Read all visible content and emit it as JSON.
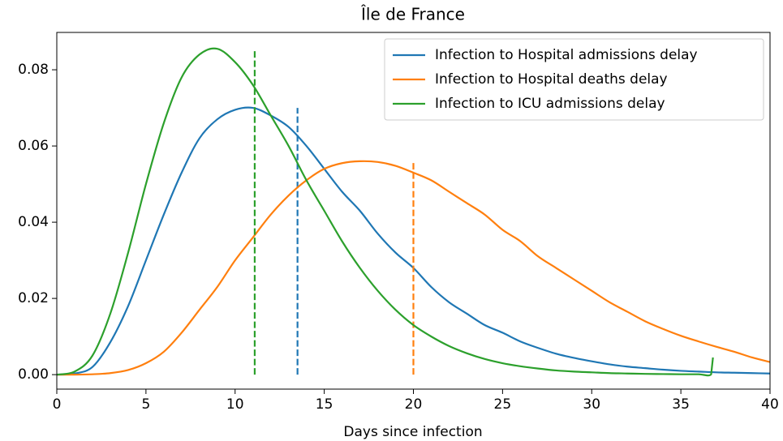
{
  "chart_data": {
    "type": "line",
    "title": "Île de France",
    "xlabel": "Days since infection",
    "x": [
      0,
      1,
      2,
      3,
      4,
      5,
      6,
      7,
      8,
      9,
      10,
      11,
      12,
      13,
      14,
      15,
      16,
      17,
      18,
      19,
      20,
      21,
      22,
      23,
      24,
      25,
      26,
      27,
      28,
      29,
      30,
      31,
      32,
      33,
      34,
      35,
      36,
      37,
      38,
      39,
      40
    ],
    "series": [
      {
        "name": "Infection to Hospital admissions delay",
        "color": "#1f77b4",
        "values": [
          0,
          0.0003,
          0.002,
          0.0085,
          0.018,
          0.03,
          0.042,
          0.053,
          0.062,
          0.067,
          0.0695,
          0.07,
          0.068,
          0.065,
          0.06,
          0.054,
          0.048,
          0.043,
          0.037,
          0.032,
          0.028,
          0.023,
          0.019,
          0.016,
          0.013,
          0.011,
          0.0087,
          0.007,
          0.0055,
          0.0044,
          0.0035,
          0.0027,
          0.0021,
          0.0017,
          0.0013,
          0.001,
          0.0008,
          0.0006,
          0.0005,
          0.0004,
          0.0003
        ],
        "vline": {
          "x": 13.5,
          "ymin": 0,
          "ymax": 0.07
        }
      },
      {
        "name": "Infection to Hospital deaths delay",
        "color": "#ff7f0e",
        "values": [
          0,
          0,
          0.0001,
          0.0004,
          0.0012,
          0.003,
          0.006,
          0.011,
          0.017,
          0.023,
          0.03,
          0.036,
          0.042,
          0.047,
          0.051,
          0.054,
          0.0555,
          0.056,
          0.0558,
          0.0548,
          0.053,
          0.051,
          0.048,
          0.045,
          0.042,
          0.038,
          0.035,
          0.031,
          0.028,
          0.025,
          0.022,
          0.019,
          0.0165,
          0.014,
          0.012,
          0.0102,
          0.0087,
          0.0073,
          0.006,
          0.0045,
          0.0033
        ],
        "vline": {
          "x": 20,
          "ymin": 0,
          "ymax": 0.056
        }
      },
      {
        "name": "Infection to ICU admissions delay",
        "color": "#2ca02c",
        "x": [
          0,
          1,
          2,
          3,
          4,
          5,
          6,
          7,
          8,
          9,
          10,
          11,
          12,
          13,
          14,
          15,
          16,
          17,
          18,
          19,
          20,
          21,
          22,
          23,
          24,
          25,
          26,
          27,
          28,
          29,
          30,
          31,
          32,
          33,
          34,
          35,
          36,
          36.7,
          36.8
        ],
        "values": [
          0,
          0.0008,
          0.005,
          0.016,
          0.032,
          0.05,
          0.066,
          0.078,
          0.084,
          0.0855,
          0.082,
          0.076,
          0.068,
          0.06,
          0.051,
          0.043,
          0.035,
          0.028,
          0.022,
          0.017,
          0.013,
          0.01,
          0.0075,
          0.0056,
          0.0041,
          0.003,
          0.0022,
          0.0016,
          0.0011,
          0.0008,
          0.0006,
          0.0004,
          0.0003,
          0.0002,
          0.00015,
          0.0001,
          0.0001,
          0.0001,
          0.0045
        ],
        "vline": {
          "x": 11.1,
          "ymin": 0,
          "ymax": 0.0855
        }
      }
    ],
    "xlim": [
      0,
      40
    ],
    "xticks": [
      0,
      5,
      10,
      15,
      20,
      25,
      30,
      35,
      40
    ],
    "ylim": [
      -0.0038,
      0.0898
    ],
    "yticks": [
      {
        "value": 0,
        "label": "0.00"
      },
      {
        "value": 0.02,
        "label": "0.02"
      },
      {
        "value": 0.04,
        "label": "0.04"
      },
      {
        "value": 0.06,
        "label": "0.06"
      },
      {
        "value": 0.08,
        "label": "0.08"
      }
    ],
    "legend": "upper right"
  }
}
